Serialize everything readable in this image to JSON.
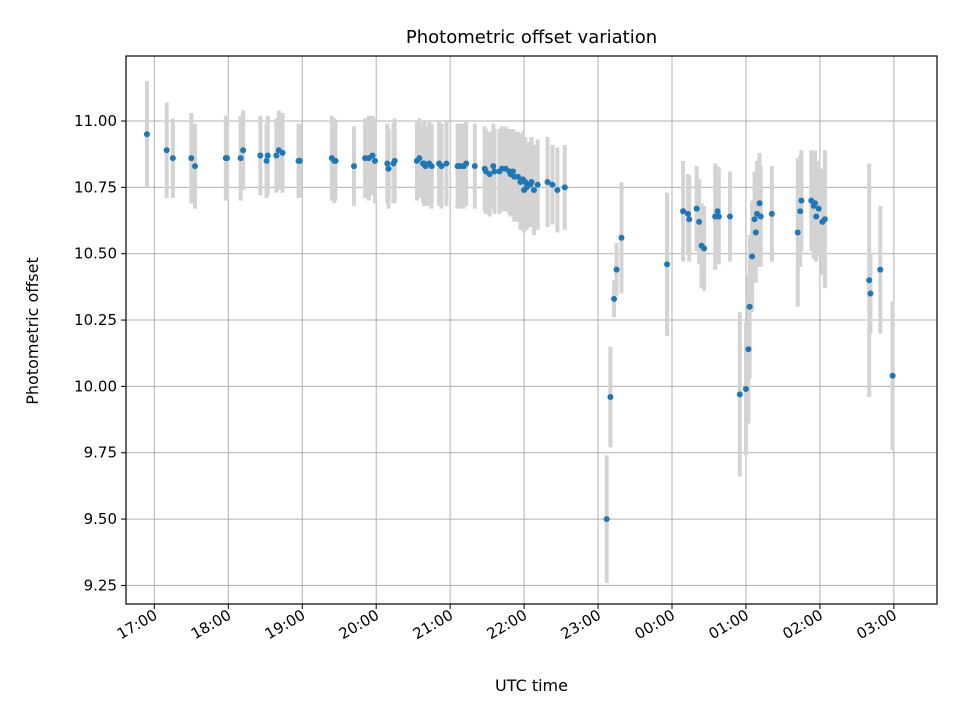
{
  "chart_data": {
    "type": "scatter",
    "title": "Photometric offset variation",
    "xlabel": "UTC time",
    "ylabel": "Photometric offset",
    "grid": true,
    "ylim": [
      9.18,
      11.245
    ],
    "xlim": [
      "16:37",
      "03:35"
    ],
    "x_ticks": [
      "17:00",
      "18:00",
      "19:00",
      "20:00",
      "21:00",
      "22:00",
      "23:00",
      "00:00",
      "01:00",
      "02:00",
      "03:00"
    ],
    "y_ticks": [
      "9.25",
      "9.50",
      "9.75",
      "10.00",
      "10.25",
      "10.50",
      "10.75",
      "11.00"
    ],
    "colors": {
      "point": "#1f77b4",
      "errorbar": "#d3d3d3",
      "grid": "#b0b0b0"
    },
    "series": [
      {
        "x": [
          "16:54",
          "17:10",
          "17:15",
          "17:30",
          "17:33",
          "17:58",
          "17:59",
          "18:10",
          "18:12",
          "18:26",
          "18:31",
          "18:32",
          "18:39",
          "18:41",
          "18:44",
          "18:57",
          "18:58",
          "19:24",
          "19:26",
          "19:27",
          "19:42",
          "19:51",
          "19:54",
          "19:57",
          "19:59",
          "20:09",
          "20:10",
          "20:14",
          "20:15",
          "20:33",
          "20:35",
          "20:38",
          "20:39",
          "20:40",
          "20:43",
          "20:45",
          "20:51",
          "20:53",
          "20:57",
          "21:06",
          "21:08",
          "21:11",
          "21:13",
          "21:20",
          "21:28",
          "21:29",
          "21:32",
          "21:35",
          "21:36",
          "21:40",
          "21:42",
          "21:45",
          "21:48",
          "21:49",
          "21:51",
          "21:52",
          "21:55",
          "21:57",
          "21:59",
          "22:00",
          "22:01",
          "22:02",
          "22:04",
          "22:05",
          "22:06",
          "22:08",
          "22:11",
          "22:19",
          "22:23",
          "22:27",
          "22:33",
          "23:07",
          "23:10",
          "23:13",
          "23:15",
          "23:19",
          "23:56",
          "24:09",
          "24:13",
          "24:14",
          "24:20",
          "24:22",
          "24:24",
          "24:26",
          "24:35",
          "24:37",
          "24:38",
          "24:47",
          "24:55",
          "25:00",
          "25:02",
          "25:03",
          "25:05",
          "25:07",
          "25:08",
          "25:09",
          "25:11",
          "25:12",
          "25:21",
          "25:42",
          "25:44",
          "25:45",
          "25:53",
          "25:55",
          "25:56",
          "25:57",
          "25:59",
          "26:02",
          "26:04",
          "26:40",
          "26:41",
          "26:49",
          "26:59"
        ],
        "y": [
          10.95,
          10.89,
          10.86,
          10.86,
          10.83,
          10.86,
          10.86,
          10.86,
          10.89,
          10.87,
          10.85,
          10.87,
          10.87,
          10.89,
          10.88,
          10.85,
          10.85,
          10.86,
          10.85,
          10.85,
          10.83,
          10.86,
          10.86,
          10.87,
          10.85,
          10.84,
          10.82,
          10.84,
          10.85,
          10.85,
          10.86,
          10.84,
          10.84,
          10.83,
          10.84,
          10.83,
          10.84,
          10.83,
          10.84,
          10.83,
          10.83,
          10.83,
          10.84,
          10.83,
          10.82,
          10.81,
          10.8,
          10.83,
          10.81,
          10.81,
          10.82,
          10.82,
          10.81,
          10.8,
          10.81,
          10.79,
          10.79,
          10.77,
          10.78,
          10.74,
          10.77,
          10.75,
          10.76,
          10.76,
          10.77,
          10.74,
          10.76,
          10.77,
          10.76,
          10.74,
          10.75,
          9.5,
          9.96,
          10.33,
          10.44,
          10.56,
          10.46,
          10.66,
          10.65,
          10.63,
          10.67,
          10.62,
          10.53,
          10.52,
          10.64,
          10.66,
          10.64,
          10.64,
          9.97,
          9.99,
          10.14,
          10.3,
          10.49,
          10.63,
          10.58,
          10.65,
          10.69,
          10.64,
          10.65,
          10.58,
          10.66,
          10.7,
          10.7,
          10.68,
          10.69,
          10.64,
          10.67,
          10.62,
          10.63,
          10.4,
          10.35,
          10.44,
          10.04
        ],
        "error": [
          0.2,
          0.18,
          0.15,
          0.17,
          0.16,
          0.16,
          0.16,
          0.16,
          0.15,
          0.15,
          0.14,
          0.15,
          0.14,
          0.15,
          0.15,
          0.14,
          0.14,
          0.16,
          0.16,
          0.15,
          0.15,
          0.15,
          0.16,
          0.15,
          0.16,
          0.15,
          0.15,
          0.15,
          0.16,
          0.15,
          0.15,
          0.15,
          0.16,
          0.15,
          0.16,
          0.16,
          0.16,
          0.16,
          0.16,
          0.16,
          0.16,
          0.16,
          0.16,
          0.16,
          0.16,
          0.16,
          0.16,
          0.16,
          0.16,
          0.16,
          0.16,
          0.16,
          0.16,
          0.16,
          0.16,
          0.17,
          0.17,
          0.18,
          0.18,
          0.16,
          0.17,
          0.16,
          0.16,
          0.16,
          0.17,
          0.17,
          0.17,
          0.17,
          0.15,
          0.16,
          0.16,
          0.24,
          0.19,
          0.07,
          0.1,
          0.21,
          0.27,
          0.19,
          0.15,
          0.16,
          0.16,
          0.16,
          0.16,
          0.16,
          0.2,
          0.17,
          0.18,
          0.17,
          0.31,
          0.25,
          0.28,
          0.27,
          0.21,
          0.18,
          0.19,
          0.2,
          0.19,
          0.19,
          0.18,
          0.28,
          0.21,
          0.19,
          0.19,
          0.2,
          0.2,
          0.17,
          0.18,
          0.2,
          0.26,
          0.44,
          0.15,
          0.24,
          0.28
        ]
      }
    ]
  }
}
